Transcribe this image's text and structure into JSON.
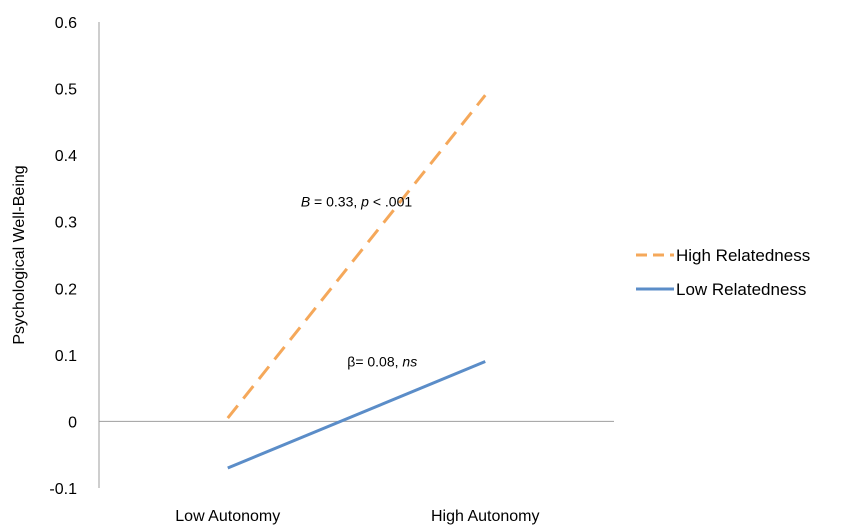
{
  "chart_data": {
    "type": "line",
    "title": "",
    "xlabel": "",
    "ylabel": "Psychological Well-Being",
    "categories": [
      "Low Autonomy",
      "High Autonomy"
    ],
    "ylim": [
      -0.1,
      0.6
    ],
    "yticks": [
      -0.1,
      0,
      0.1,
      0.2,
      0.3,
      0.4,
      0.5,
      0.6
    ],
    "grid": false,
    "legend_position": "right",
    "series": [
      {
        "name": "High Relatedness",
        "values": [
          0.005,
          0.49
        ],
        "color": "#F5A85A",
        "dash": "dashed"
      },
      {
        "name": "Low Relatedness",
        "values": [
          -0.07,
          0.09
        ],
        "color": "#5B8DC8",
        "dash": "solid"
      }
    ],
    "annotations": [
      {
        "text_parts": [
          {
            "text": "B",
            "italic": true
          },
          {
            "text": " = 0.33, ",
            "italic": false
          },
          {
            "text": "p",
            "italic": true
          },
          {
            "text": " < .001",
            "italic": false
          }
        ],
        "anchor_category": 0.5,
        "y": 0.33
      },
      {
        "text_parts": [
          {
            "text": "β= 0.08, ",
            "italic": false
          },
          {
            "text": "ns",
            "italic": true
          }
        ],
        "anchor_category": 0.6,
        "y": 0.09
      }
    ]
  }
}
